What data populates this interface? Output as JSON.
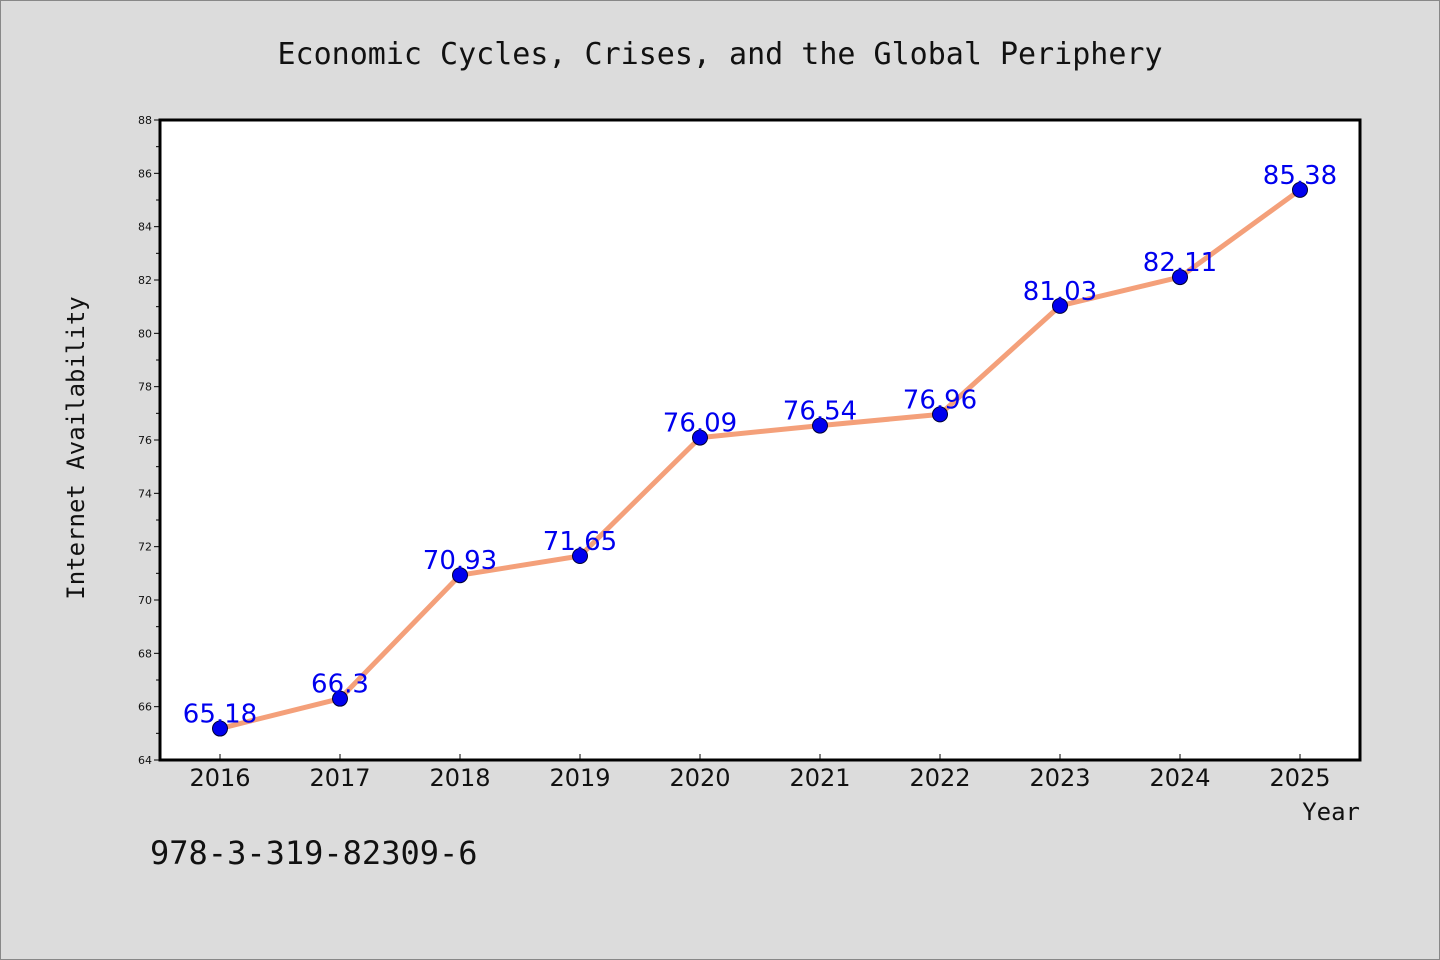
{
  "chart_data": {
    "type": "line",
    "title": "Economic Cycles, Crises, and the Global Periphery",
    "xlabel": "Year",
    "ylabel": "Internet Availability",
    "categories": [
      "2016",
      "2017",
      "2018",
      "2019",
      "2020",
      "2021",
      "2022",
      "2023",
      "2024",
      "2025"
    ],
    "series": [
      {
        "values": [
          65.18,
          66.3,
          70.93,
          71.65,
          76.09,
          76.54,
          76.96,
          81.03,
          82.11,
          85.38
        ],
        "labels": [
          "65.18",
          "66.3",
          "70.93",
          "71.65",
          "76.09",
          "76.54",
          "76.96",
          "81.03",
          "82.11",
          "85.38"
        ]
      }
    ],
    "ylim": [
      64,
      88
    ],
    "yticks": [
      "64",
      "66",
      "68",
      "70",
      "72",
      "74",
      "76",
      "78",
      "80",
      "82",
      "84",
      "86",
      "88"
    ],
    "grid": false,
    "colors": {
      "line": "#f4a07a",
      "marker": "#0000ee",
      "label": "#0000ee",
      "background": "#dcdcdc",
      "plot_background": "#ffffff"
    }
  },
  "footer": {
    "isbn": "978-3-319-82309-6"
  }
}
